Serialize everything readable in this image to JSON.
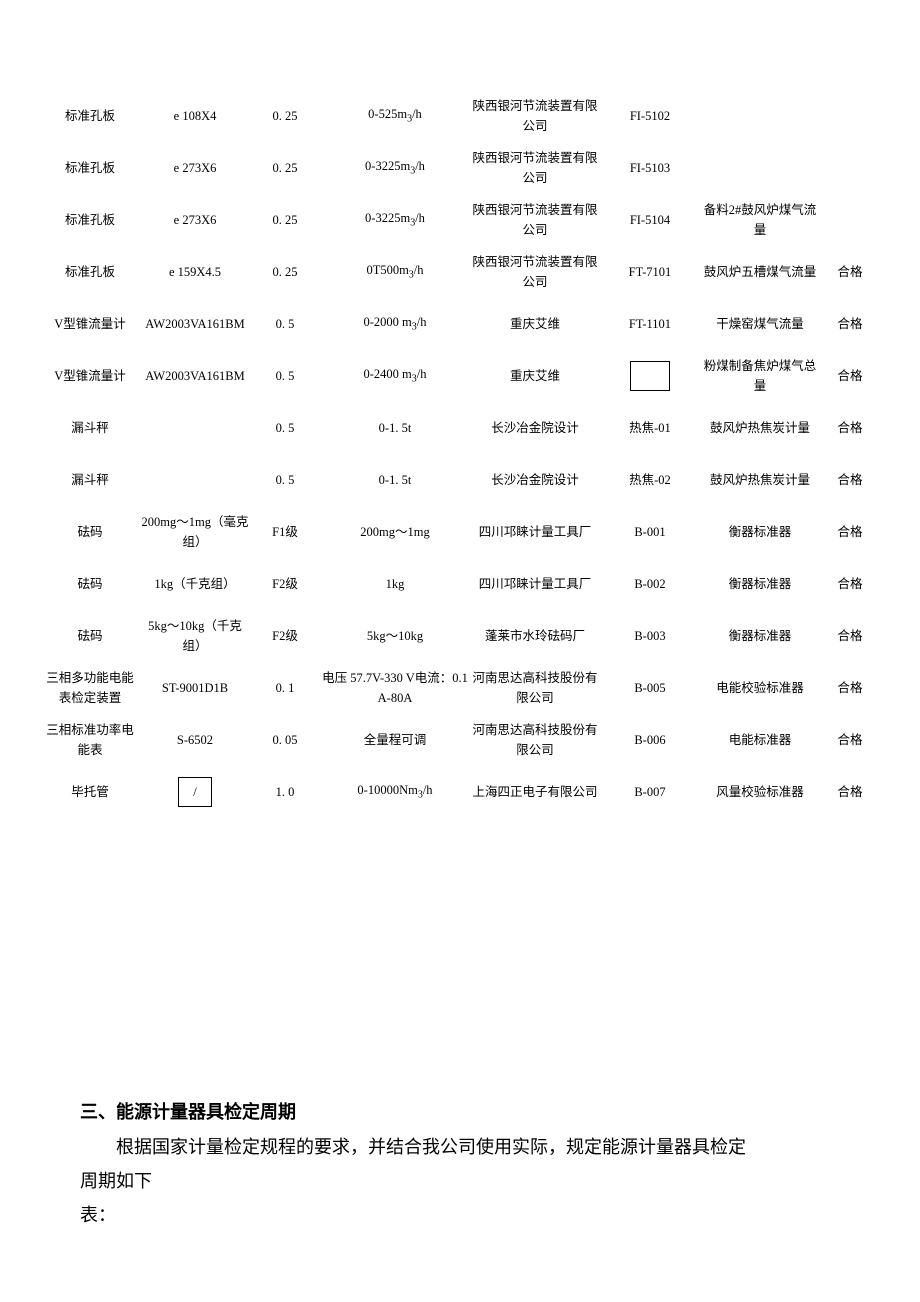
{
  "table": {
    "colWidths": [
      "10%",
      "11%",
      "7%",
      "15%",
      "13%",
      "10%",
      "12%",
      "6%"
    ],
    "rows": [
      {
        "c": [
          "标准孔板",
          "e 108X4",
          "0. 25",
          "0-525m₃/h",
          "陕西银河节流装置有限公司",
          "FI-5102",
          "",
          ""
        ]
      },
      {
        "c": [
          "标准孔板",
          "e 273X6",
          "0. 25",
          "0-3225m₃/h",
          "陕西银河节流装置有限公司",
          "FI-5103",
          "",
          ""
        ]
      },
      {
        "c": [
          "标准孔板",
          "e 273X6",
          "0. 25",
          "0-3225m₃/h",
          "陕西银河节流装置有限公司",
          "FI-5104",
          "备料2#鼓风炉煤气流量",
          ""
        ]
      },
      {
        "c": [
          "标准孔板",
          "e 159X4.5",
          "0. 25",
          "0T500m₃/h",
          "陕西银河节流装置有限公司",
          "FT-7101",
          "鼓风炉五槽煤气流量",
          "合格"
        ]
      },
      {
        "c": [
          "V型锥流量计",
          "AW2003VA161BM",
          "0. 5",
          "0-2000  m₃/h",
          "重庆艾维",
          "FT-1101",
          "干燥窑煤气流量",
          "合格"
        ]
      },
      {
        "c": [
          "V型锥流量计",
          "AW2003VA161BM",
          "0. 5",
          "0-2400  m₃/h",
          "重庆艾维",
          "",
          "粉煤制备焦炉煤气总量",
          "合格"
        ],
        "box": 5
      },
      {
        "c": [
          "漏斗秤",
          "",
          "0. 5",
          "0-1. 5t",
          "长沙冶金院设计",
          "热焦-01",
          "鼓风炉热焦炭计量",
          "合格"
        ]
      },
      {
        "c": [
          "漏斗秤",
          "",
          "0. 5",
          "0-1. 5t",
          "长沙冶金院设计",
          "热焦-02",
          "鼓风炉热焦炭计量",
          "合格"
        ]
      },
      {
        "c": [
          "砝码",
          "200mg～1mg（毫克组）",
          "F1级",
          "200mg～1mg",
          "四川邛睐计量工具厂",
          "B-001",
          "衡器标准器",
          "合格"
        ]
      },
      {
        "c": [
          "砝码",
          "1kg（千克组）",
          "F2级",
          "1kg",
          "四川邛睐计量工具厂",
          "B-002",
          "衡器标准器",
          "合格"
        ]
      },
      {
        "c": [
          "砝码",
          "5kg～10kg（千克组）",
          "F2级",
          "5kg～10kg",
          "蓬莱市水玲砝码厂",
          "B-003",
          "衡器标准器",
          "合格"
        ]
      },
      {
        "c": [
          "三相多功能电能表检定装置",
          "ST-9001D1B",
          "0. 1",
          "电压  57.7V-330 V电流：0.1A-80A",
          "河南思达高科技股份有限公司",
          "B-005",
          "电能校验标准器",
          "合格"
        ]
      },
      {
        "c": [
          "三相标准功率电能表",
          "S-6502",
          "0. 05",
          "全量程可调",
          "河南思达高科技股份有限公司",
          "B-006",
          "电能标准器",
          "合格"
        ]
      },
      {
        "c": [
          "毕托管",
          "/",
          "1. 0",
          "0-10000Nm₃/h",
          "上海四正电子有限公司",
          "B-007",
          "风量校验标准器",
          "合格"
        ],
        "box": 1
      }
    ]
  },
  "section": {
    "title": "三、能源计量器具检定周期",
    "para": "根据国家计量检定规程的要求，并结合我公司使用实际，规定能源计量器具检定周期如下",
    "tail1": "周期如下",
    "tail2": "表："
  }
}
